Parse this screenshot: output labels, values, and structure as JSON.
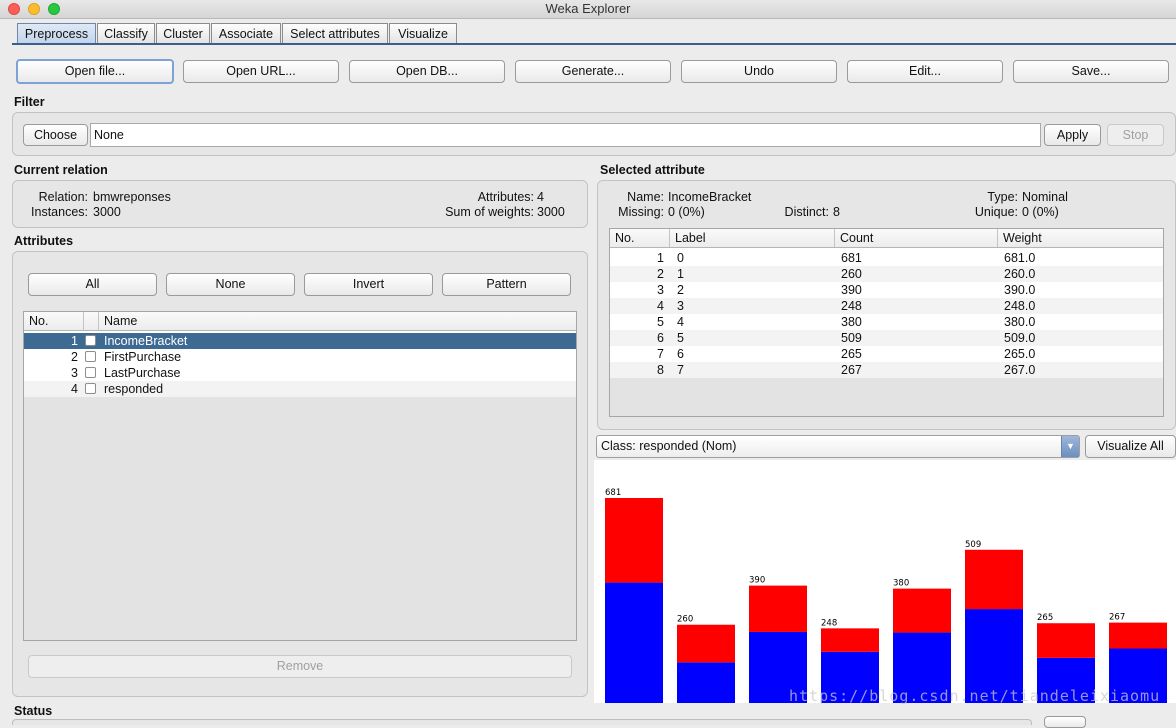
{
  "window": {
    "title": "Weka Explorer"
  },
  "tabs": [
    {
      "label": "Preprocess",
      "active": true
    },
    {
      "label": "Classify"
    },
    {
      "label": "Cluster"
    },
    {
      "label": "Associate"
    },
    {
      "label": "Select attributes"
    },
    {
      "label": "Visualize"
    }
  ],
  "toolbar": {
    "open_file": "Open file...",
    "open_url": "Open URL...",
    "open_db": "Open DB...",
    "generate": "Generate...",
    "undo": "Undo",
    "edit": "Edit...",
    "save": "Save..."
  },
  "filter": {
    "heading": "Filter",
    "choose": "Choose",
    "value": "None",
    "apply": "Apply",
    "stop": "Stop"
  },
  "relation": {
    "heading": "Current relation",
    "relation_label": "Relation:",
    "relation_value": "bmwreponses",
    "instances_label": "Instances:",
    "instances_value": "3000",
    "attributes_label": "Attributes:",
    "attributes_value": "4",
    "weights_label": "Sum of weights:",
    "weights_value": "3000"
  },
  "attributes": {
    "heading": "Attributes",
    "btn_all": "All",
    "btn_none": "None",
    "btn_invert": "Invert",
    "btn_pattern": "Pattern",
    "col_no": "No.",
    "col_name": "Name",
    "rows": [
      {
        "no": "1",
        "name": "IncomeBracket",
        "selected": true
      },
      {
        "no": "2",
        "name": "FirstPurchase"
      },
      {
        "no": "3",
        "name": "LastPurchase"
      },
      {
        "no": "4",
        "name": "responded"
      }
    ],
    "remove": "Remove"
  },
  "selected": {
    "heading": "Selected attribute",
    "name_label": "Name:",
    "name_value": "IncomeBracket",
    "type_label": "Type:",
    "type_value": "Nominal",
    "missing_label": "Missing:",
    "missing_value": "0 (0%)",
    "distinct_label": "Distinct:",
    "distinct_value": "8",
    "unique_label": "Unique:",
    "unique_value": "0 (0%)",
    "col_no": "No.",
    "col_label": "Label",
    "col_count": "Count",
    "col_weight": "Weight",
    "rows": [
      {
        "no": "1",
        "label": "0",
        "count": "681",
        "weight": "681.0"
      },
      {
        "no": "2",
        "label": "1",
        "count": "260",
        "weight": "260.0"
      },
      {
        "no": "3",
        "label": "2",
        "count": "390",
        "weight": "390.0"
      },
      {
        "no": "4",
        "label": "3",
        "count": "248",
        "weight": "248.0"
      },
      {
        "no": "5",
        "label": "4",
        "count": "380",
        "weight": "380.0"
      },
      {
        "no": "6",
        "label": "5",
        "count": "509",
        "weight": "509.0"
      },
      {
        "no": "7",
        "label": "6",
        "count": "265",
        "weight": "265.0"
      },
      {
        "no": "8",
        "label": "7",
        "count": "267",
        "weight": "267.0"
      }
    ]
  },
  "class_selector": {
    "value": "Class: responded (Nom)",
    "visualize_all": "Visualize All"
  },
  "status": {
    "heading": "Status"
  },
  "chart_data": {
    "type": "bar",
    "stacked": true,
    "categories": [
      "0",
      "1",
      "2",
      "3",
      "4",
      "5",
      "6",
      "7"
    ],
    "totals": [
      "681",
      "260",
      "390",
      "248",
      "380",
      "509",
      "265",
      "267"
    ],
    "ymax": 681,
    "series": [
      {
        "values": [
          400,
          135,
          236,
          170,
          234,
          312,
          150,
          181
        ],
        "color": "#0000ff"
      },
      {
        "values": [
          281,
          125,
          154,
          78,
          146,
          197,
          115,
          86
        ],
        "color": "#ff0000"
      }
    ]
  },
  "watermark": "https://blog.csdn.net/tiandeleixiaomu"
}
